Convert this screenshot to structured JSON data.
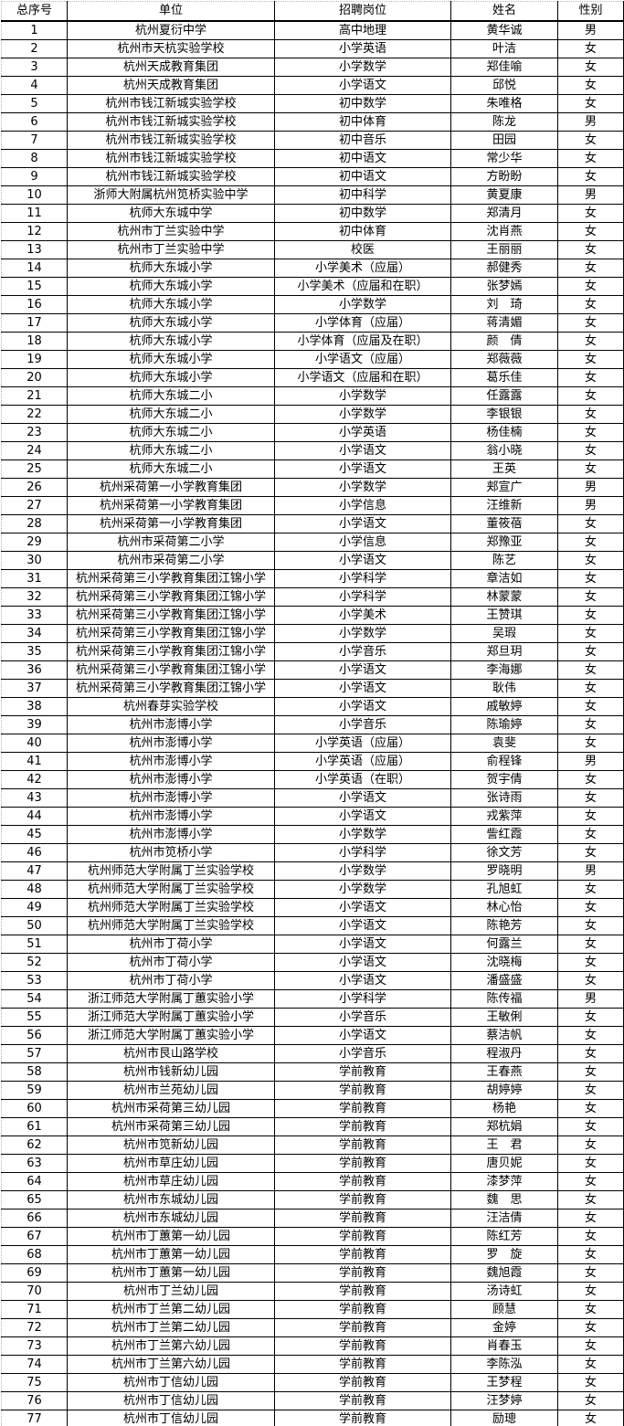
{
  "table": {
    "columns": [
      {
        "key": "serial",
        "label": "总序号"
      },
      {
        "key": "unit",
        "label": "单位"
      },
      {
        "key": "position",
        "label": "招聘岗位"
      },
      {
        "key": "name",
        "label": "姓名"
      },
      {
        "key": "gender",
        "label": "性别"
      }
    ],
    "rows": [
      [
        "1",
        "杭州夏衍中学",
        "高中地理",
        "黄华诚",
        "男"
      ],
      [
        "2",
        "杭州市天杭实验学校",
        "小学英语",
        "叶洁",
        "女"
      ],
      [
        "3",
        "杭州天成教育集团",
        "小学数学",
        "郑佳喻",
        "女"
      ],
      [
        "4",
        "杭州天成教育集团",
        "小学语文",
        "邱悦",
        "女"
      ],
      [
        "5",
        "杭州市钱江新城实验学校",
        "初中数学",
        "朱唯格",
        "女"
      ],
      [
        "6",
        "杭州市钱江新城实验学校",
        "初中体育",
        "陈龙",
        "男"
      ],
      [
        "7",
        "杭州市钱江新城实验学校",
        "初中音乐",
        "田园",
        "女"
      ],
      [
        "8",
        "杭州市钱江新城实验学校",
        "初中语文",
        "常少华",
        "女"
      ],
      [
        "9",
        "杭州市钱江新城实验学校",
        "初中语文",
        "方盼盼",
        "女"
      ],
      [
        "10",
        "浙师大附属杭州笕桥实验中学",
        "初中科学",
        "黄夏康",
        "男"
      ],
      [
        "11",
        "杭师大东城中学",
        "初中数学",
        "郑清月",
        "女"
      ],
      [
        "12",
        "杭州市丁兰实验中学",
        "初中体育",
        "沈肖燕",
        "女"
      ],
      [
        "13",
        "杭州市丁兰实验中学",
        "校医",
        "王丽丽",
        "女"
      ],
      [
        "14",
        "杭师大东城小学",
        "小学美术（应届）",
        "郝健秀",
        "女"
      ],
      [
        "15",
        "杭师大东城小学",
        "小学美术（应届和在职）",
        "张梦嫣",
        "女"
      ],
      [
        "16",
        "杭师大东城小学",
        "小学数学",
        "刘　琦",
        "女"
      ],
      [
        "17",
        "杭师大东城小学",
        "小学体育（应届）",
        "蒋清媚",
        "女"
      ],
      [
        "18",
        "杭师大东城小学",
        "小学体育（应届及在职）",
        "颜　倩",
        "女"
      ],
      [
        "19",
        "杭师大东城小学",
        "小学语文（应届）",
        "郑薇薇",
        "女"
      ],
      [
        "20",
        "杭师大东城小学",
        "小学语文（应届和在职）",
        "葛乐佳",
        "女"
      ],
      [
        "21",
        "杭师大东城二小",
        "小学数学",
        "任露露",
        "女"
      ],
      [
        "22",
        "杭师大东城二小",
        "小学数学",
        "李银银",
        "女"
      ],
      [
        "23",
        "杭师大东城二小",
        "小学英语",
        "杨佳楠",
        "女"
      ],
      [
        "24",
        "杭师大东城二小",
        "小学语文",
        "翁小晓",
        "女"
      ],
      [
        "25",
        "杭师大东城二小",
        "小学语文",
        "王英",
        "女"
      ],
      [
        "26",
        "杭州采荷第一小学教育集团",
        "小学数学",
        "郏宣广",
        "男"
      ],
      [
        "27",
        "杭州采荷第一小学教育集团",
        "小学信息",
        "汪维新",
        "男"
      ],
      [
        "28",
        "杭州采荷第一小学教育集团",
        "小学语文",
        "董筱蓓",
        "女"
      ],
      [
        "29",
        "杭州市采荷第二小学",
        "小学信息",
        "郑豫亚",
        "女"
      ],
      [
        "30",
        "杭州市采荷第二小学",
        "小学语文",
        "陈艺",
        "女"
      ],
      [
        "31",
        "杭州采荷第三小学教育集团江锦小学",
        "小学科学",
        "章洁如",
        "女"
      ],
      [
        "32",
        "杭州采荷第三小学教育集团江锦小学",
        "小学科学",
        "林蒙蒙",
        "女"
      ],
      [
        "33",
        "杭州采荷第三小学教育集团江锦小学",
        "小学美术",
        "王赞琪",
        "女"
      ],
      [
        "34",
        "杭州采荷第三小学教育集团江锦小学",
        "小学数学",
        "吴瑕",
        "女"
      ],
      [
        "35",
        "杭州采荷第三小学教育集团江锦小学",
        "小学音乐",
        "郑旦玥",
        "女"
      ],
      [
        "36",
        "杭州采荷第三小学教育集团江锦小学",
        "小学语文",
        "李海娜",
        "女"
      ],
      [
        "37",
        "杭州采荷第三小学教育集团江锦小学",
        "小学语文",
        "耿伟",
        "女"
      ],
      [
        "38",
        "杭州春芽实验学校",
        "小学语文",
        "戚敏婷",
        "女"
      ],
      [
        "39",
        "杭州市澎博小学",
        "小学音乐",
        "陈瑜婷",
        "女"
      ],
      [
        "40",
        "杭州市澎博小学",
        "小学英语（应届）",
        "袁斐",
        "女"
      ],
      [
        "41",
        "杭州市澎博小学",
        "小学英语（应届）",
        "俞程锋",
        "男"
      ],
      [
        "42",
        "杭州市澎博小学",
        "小学英语（在职）",
        "贺宇倩",
        "女"
      ],
      [
        "43",
        "杭州市澎博小学",
        "小学语文",
        "张诗雨",
        "女"
      ],
      [
        "44",
        "杭州市澎博小学",
        "小学语文",
        "戎紫萍",
        "女"
      ],
      [
        "45",
        "杭州市澎博小学",
        "小学数学",
        "訾红霞",
        "女"
      ],
      [
        "46",
        "杭州市笕桥小学",
        "小学科学",
        "徐文芳",
        "女"
      ],
      [
        "47",
        "杭州师范大学附属丁兰实验学校",
        "小学数学",
        "罗晓明",
        "男"
      ],
      [
        "48",
        "杭州师范大学附属丁兰实验学校",
        "小学数学",
        "孔旭虹",
        "女"
      ],
      [
        "49",
        "杭州师范大学附属丁兰实验学校",
        "小学语文",
        "林心怡",
        "女"
      ],
      [
        "50",
        "杭州师范大学附属丁兰实验学校",
        "小学语文",
        "陈艳芳",
        "女"
      ],
      [
        "51",
        "杭州市丁荷小学",
        "小学语文",
        "何露兰",
        "女"
      ],
      [
        "52",
        "杭州市丁荷小学",
        "小学语文",
        "沈晓梅",
        "女"
      ],
      [
        "53",
        "杭州市丁荷小学",
        "小学语文",
        "潘盛盛",
        "女"
      ],
      [
        "54",
        "浙江师范大学附属丁蕙实验小学",
        "小学科学",
        "陈传福",
        "男"
      ],
      [
        "55",
        "浙江师范大学附属丁蕙实验小学",
        "小学音乐",
        "王敏俐",
        "女"
      ],
      [
        "56",
        "浙江师范大学附属丁蕙实验小学",
        "小学语文",
        "蔡洁帆",
        "女"
      ],
      [
        "57",
        "杭州市艮山路学校",
        "小学音乐",
        "程淑丹",
        "女"
      ],
      [
        "58",
        "杭州市钱新幼儿园",
        "学前教育",
        "王春燕",
        "女"
      ],
      [
        "59",
        "杭州市兰苑幼儿园",
        "学前教育",
        "胡婷婷",
        "女"
      ],
      [
        "60",
        "杭州市采荷第三幼儿园",
        "学前教育",
        "杨艳",
        "女"
      ],
      [
        "61",
        "杭州市采荷第三幼儿园",
        "学前教育",
        "郑杭娟",
        "女"
      ],
      [
        "62",
        "杭州市笕新幼儿园",
        "学前教育",
        "王　君",
        "女"
      ],
      [
        "63",
        "杭州市草庄幼儿园",
        "学前教育",
        "唐贝妮",
        "女"
      ],
      [
        "64",
        "杭州市草庄幼儿园",
        "学前教育",
        "漆梦萍",
        "女"
      ],
      [
        "65",
        "杭州市东城幼儿园",
        "学前教育",
        "魏　思",
        "女"
      ],
      [
        "66",
        "杭州市东城幼儿园",
        "学前教育",
        "汪洁倩",
        "女"
      ],
      [
        "67",
        "杭州市丁蕙第一幼儿园",
        "学前教育",
        "陈红芳",
        "女"
      ],
      [
        "68",
        "杭州市丁蕙第一幼儿园",
        "学前教育",
        "罗　旋",
        "女"
      ],
      [
        "69",
        "杭州市丁蕙第一幼儿园",
        "学前教育",
        "魏旭霞",
        "女"
      ],
      [
        "70",
        "杭州市丁兰幼儿园",
        "学前教育",
        "汤诗虹",
        "女"
      ],
      [
        "71",
        "杭州市丁兰第二幼儿园",
        "学前教育",
        "顾慧",
        "女"
      ],
      [
        "72",
        "杭州市丁兰第二幼儿园",
        "学前教育",
        "金婷",
        "女"
      ],
      [
        "73",
        "杭州市丁兰第六幼儿园",
        "学前教育",
        "肖春玉",
        "女"
      ],
      [
        "74",
        "杭州市丁兰第六幼儿园",
        "学前教育",
        "李陈泓",
        "女"
      ],
      [
        "75",
        "杭州市丁信幼儿园",
        "学前教育",
        "王梦程",
        "女"
      ],
      [
        "76",
        "杭州市丁信幼儿园",
        "学前教育",
        "汪梦婷",
        "女"
      ],
      [
        "77",
        "杭州市丁信幼儿园",
        "学前教育",
        "励璁",
        "女"
      ]
    ]
  }
}
